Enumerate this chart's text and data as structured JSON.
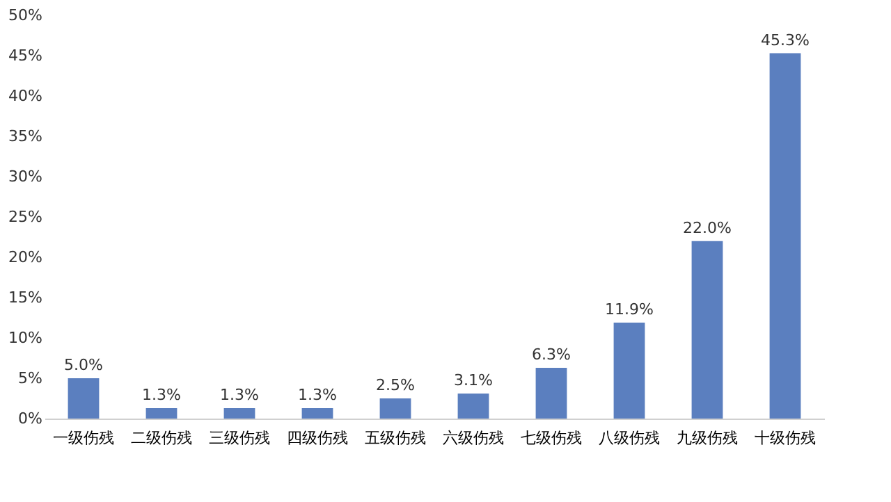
{
  "chart_data": {
    "type": "bar",
    "categories": [
      "一级伤残",
      "二级伤残",
      "三级伤残",
      "四级伤残",
      "五级伤残",
      "六级伤残",
      "七级伤残",
      "八级伤残",
      "九级伤残",
      "十级伤残"
    ],
    "values": [
      5.0,
      1.3,
      1.3,
      1.3,
      2.5,
      3.1,
      6.3,
      11.9,
      22.0,
      45.3
    ],
    "value_labels": [
      "5.0%",
      "1.3%",
      "1.3%",
      "1.3%",
      "2.5%",
      "3.1%",
      "6.3%",
      "11.9%",
      "22.0%",
      "45.3%"
    ],
    "color": "#5b7fbf",
    "ylim": [
      0,
      50
    ],
    "yticks": [
      {
        "value": 0,
        "label": "0%"
      },
      {
        "value": 5,
        "label": "5%"
      },
      {
        "value": 10,
        "label": "10%"
      },
      {
        "value": 15,
        "label": "15%"
      },
      {
        "value": 20,
        "label": "20%"
      },
      {
        "value": 25,
        "label": "25%"
      },
      {
        "value": 30,
        "label": "30%"
      },
      {
        "value": 35,
        "label": "35%"
      },
      {
        "value": 40,
        "label": "40%"
      },
      {
        "value": 45,
        "label": "45%"
      },
      {
        "value": 50,
        "label": "50%"
      }
    ],
    "grid": false
  }
}
